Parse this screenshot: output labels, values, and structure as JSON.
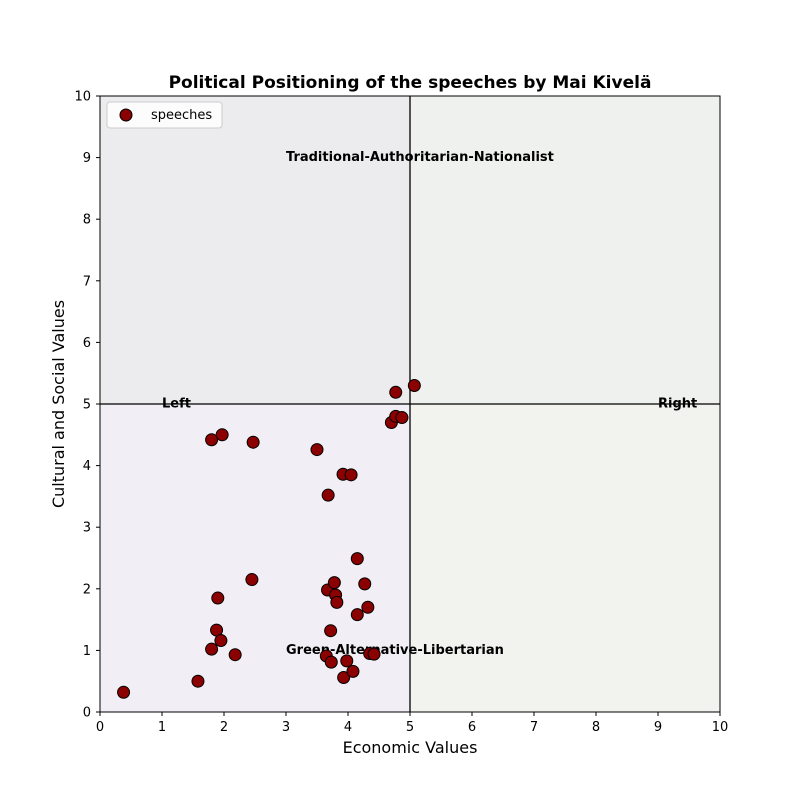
{
  "chart_data": {
    "type": "scatter",
    "title": "Political Positioning of the speeches by Mai Kivelä",
    "xlabel": "Economic Values",
    "ylabel": "Cultural and Social Values",
    "xlim": [
      0,
      10
    ],
    "ylim": [
      0,
      10
    ],
    "xticks": [
      "0",
      "1",
      "2",
      "3",
      "4",
      "5",
      "6",
      "7",
      "8",
      "9",
      "10"
    ],
    "yticks": [
      "0",
      "1",
      "2",
      "3",
      "4",
      "5",
      "6",
      "7",
      "8",
      "9",
      "10"
    ],
    "grid": false,
    "legend": {
      "placement": "top-left",
      "entries": [
        "speeches"
      ]
    },
    "quadrant_split": {
      "x": 5,
      "y": 5
    },
    "quadrant_colors": {
      "top_left": "#ececee",
      "top_right": "#eff1ee",
      "bottom_left": "#f1eff5",
      "bottom_right": "#f2f3ef"
    },
    "marker_color": "#8b0000",
    "marker_edge": "#000000",
    "annotations": [
      {
        "text": "Traditional-Authoritarian-Nationalist",
        "x": 3.0,
        "y": 9.0
      },
      {
        "text": "Green-Alternative-Libertarian",
        "x": 3.0,
        "y": 1.0
      },
      {
        "text": "Left",
        "x": 1.0,
        "y": 5.0
      },
      {
        "text": "Right",
        "x": 9.0,
        "y": 5.0
      }
    ],
    "series": [
      {
        "name": "speeches",
        "points": [
          [
            0.38,
            0.32
          ],
          [
            1.58,
            0.5
          ],
          [
            1.8,
            1.02
          ],
          [
            1.88,
            1.33
          ],
          [
            1.9,
            1.85
          ],
          [
            1.95,
            1.16
          ],
          [
            2.18,
            0.93
          ],
          [
            1.8,
            4.42
          ],
          [
            1.97,
            4.5
          ],
          [
            2.47,
            4.38
          ],
          [
            2.45,
            2.15
          ],
          [
            3.5,
            4.26
          ],
          [
            3.68,
            3.52
          ],
          [
            3.92,
            3.86
          ],
          [
            4.05,
            3.85
          ],
          [
            3.67,
            1.98
          ],
          [
            3.72,
            1.32
          ],
          [
            3.78,
            2.1
          ],
          [
            3.8,
            1.9
          ],
          [
            3.82,
            1.78
          ],
          [
            3.65,
            0.91
          ],
          [
            3.73,
            0.81
          ],
          [
            3.93,
            0.56
          ],
          [
            3.98,
            0.83
          ],
          [
            4.08,
            0.66
          ],
          [
            4.15,
            2.49
          ],
          [
            4.15,
            1.58
          ],
          [
            4.27,
            2.08
          ],
          [
            4.32,
            1.7
          ],
          [
            4.35,
            0.95
          ],
          [
            4.42,
            0.94
          ],
          [
            4.7,
            4.7
          ],
          [
            4.77,
            4.8
          ],
          [
            4.87,
            4.78
          ],
          [
            4.77,
            5.19
          ],
          [
            5.07,
            5.3
          ]
        ]
      }
    ]
  }
}
